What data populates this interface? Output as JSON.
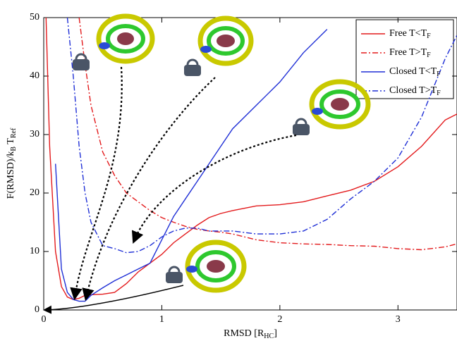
{
  "chart_data": {
    "type": "line",
    "xlabel": "RMSD [RHC]",
    "ylabel": "F(RMSD)/kB TRef",
    "x": [
      0.02,
      0.05,
      0.1,
      0.15,
      0.2,
      0.25,
      0.3,
      0.35,
      0.4,
      0.5,
      0.6,
      0.7,
      0.8,
      0.9,
      1.0,
      1.1,
      1.2,
      1.3,
      1.4,
      1.5,
      1.6,
      1.8,
      2.0,
      2.2,
      2.4,
      2.6,
      2.8,
      3.0,
      3.2,
      3.4,
      3.5
    ],
    "series": [
      {
        "name": "Free T<TF",
        "color": "#e31a1c",
        "dash": "solid",
        "values": [
          50,
          28,
          10,
          4,
          2.2,
          1.8,
          2,
          2.5,
          2.6,
          2.7,
          3,
          4.5,
          6.5,
          8,
          9.5,
          11.5,
          13,
          14.5,
          15.8,
          16.5,
          17,
          17.8,
          18,
          18.5,
          19.5,
          20.5,
          22,
          24.5,
          28,
          32.5,
          33.5
        ]
      },
      {
        "name": "Free T>TF",
        "color": "#e31a1c",
        "dash": "dashdot",
        "values": [
          null,
          null,
          null,
          null,
          null,
          null,
          50,
          42,
          35,
          27,
          23,
          20,
          18.5,
          17,
          15.8,
          15,
          14.3,
          13.8,
          13.5,
          13.3,
          13,
          12,
          11.5,
          11.3,
          11.2,
          11,
          10.9,
          10.5,
          10.3,
          10.8,
          11.3
        ]
      },
      {
        "name": "Closed T<TF",
        "color": "#1f2fd6",
        "dash": "solid",
        "values": [
          null,
          null,
          25,
          7,
          3,
          1.8,
          1.5,
          1.5,
          2.5,
          3.8,
          5,
          6,
          7,
          8,
          12,
          16,
          19,
          22,
          25,
          28,
          31,
          35,
          39,
          44,
          48,
          null,
          null,
          null,
          null,
          null,
          null
        ]
      },
      {
        "name": "Closed T>TF",
        "color": "#1f2fd6",
        "dash": "dashdot",
        "values": [
          null,
          null,
          null,
          null,
          50,
          40,
          28,
          20,
          15,
          11,
          10.5,
          9.8,
          10,
          11,
          12.5,
          13.5,
          14,
          14,
          13.5,
          13.5,
          13.5,
          13,
          13,
          13.5,
          15.5,
          19,
          22,
          26,
          33,
          43,
          47
        ]
      }
    ],
    "xlim": [
      0,
      3.5
    ],
    "ylim": [
      0,
      50
    ],
    "xticks": [
      0,
      1,
      2,
      3
    ],
    "yticks": [
      0,
      10,
      20,
      30,
      40,
      50
    ],
    "legend": "top-right"
  }
}
